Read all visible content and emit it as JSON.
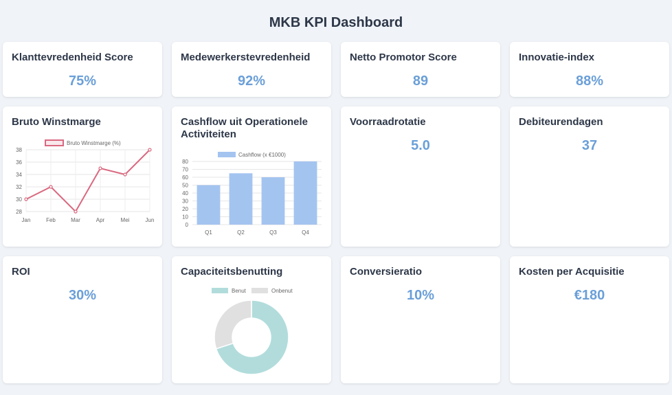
{
  "page": {
    "title": "MKB KPI Dashboard"
  },
  "kpis": [
    {
      "title": "Klanttevredenheid Score",
      "value": "75%"
    },
    {
      "title": "Medewerkerstevredenheid",
      "value": "92%"
    },
    {
      "title": "Netto Promotor Score",
      "value": "89"
    },
    {
      "title": "Innovatie-index",
      "value": "88%"
    },
    {
      "title": "Voorraadrotatie",
      "value": "5.0"
    },
    {
      "title": "Debiteurendagen",
      "value": "37"
    },
    {
      "title": "ROI",
      "value": "30%"
    },
    {
      "title": "Conversieratio",
      "value": "10%"
    },
    {
      "title": "Kosten per Acquisitie",
      "value": "€180"
    }
  ],
  "charts": {
    "gross_margin_title": "Bruto Winstmarge",
    "cashflow_title": "Cashflow uit Operationele Activiteiten",
    "capacity_title": "Capaciteitsbenutting"
  },
  "chart_data": [
    {
      "type": "line",
      "title": "",
      "categories": [
        "Jan",
        "Feb",
        "Mar",
        "Apr",
        "Mei",
        "Jun"
      ],
      "series": [
        {
          "name": "Bruto Winstmarge (%)",
          "values": [
            30,
            32,
            28,
            35,
            34,
            38
          ]
        }
      ],
      "ylim": [
        28,
        38
      ],
      "yticks": [
        28,
        30,
        32,
        34,
        36,
        38
      ],
      "color": "#d9687f",
      "grid": true,
      "legend": "top"
    },
    {
      "type": "bar",
      "title": "",
      "categories": [
        "Q1",
        "Q2",
        "Q3",
        "Q4"
      ],
      "series": [
        {
          "name": "Cashflow (x €1000)",
          "values": [
            50,
            65,
            60,
            80
          ]
        }
      ],
      "ylim": [
        0,
        80
      ],
      "yticks": [
        0,
        10,
        20,
        30,
        40,
        50,
        60,
        70,
        80
      ],
      "color": "#a4c4f0",
      "grid": true,
      "legend": "top"
    },
    {
      "type": "pie",
      "title": "",
      "labels": [
        "Benut",
        "Onbenut"
      ],
      "values": [
        70,
        30
      ],
      "colors": [
        "#b2dcdc",
        "#e0e0e0"
      ],
      "legend": "top"
    }
  ]
}
